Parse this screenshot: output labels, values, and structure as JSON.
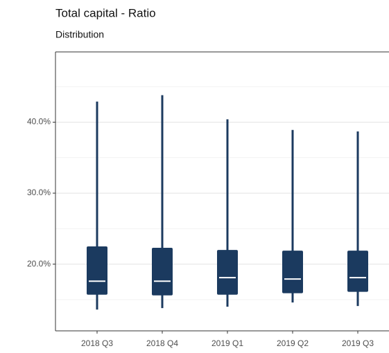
{
  "chart_data": {
    "type": "box",
    "title": "Total capital - Ratio",
    "subtitle": "Distribution",
    "categories": [
      "2018 Q3",
      "2018 Q4",
      "2019 Q1",
      "2019 Q2",
      "2019 Q3"
    ],
    "boxes": [
      {
        "low": 13.6,
        "q1": 15.7,
        "median": 17.6,
        "q3": 22.5,
        "high": 42.9
      },
      {
        "low": 13.8,
        "q1": 15.6,
        "median": 17.6,
        "q3": 22.3,
        "high": 43.8
      },
      {
        "low": 14.0,
        "q1": 15.7,
        "median": 18.1,
        "q3": 22.0,
        "high": 40.4
      },
      {
        "low": 14.6,
        "q1": 15.9,
        "median": 17.9,
        "q3": 21.9,
        "high": 38.9
      },
      {
        "low": 14.1,
        "q1": 16.1,
        "median": 18.1,
        "q3": 21.9,
        "high": 38.7
      }
    ],
    "color": "#1b3a5f",
    "median_color": "#ffffff",
    "ylim": [
      10.6,
      49.9
    ],
    "yticks": [
      {
        "value": 20,
        "label": "20.0%"
      },
      {
        "value": 30,
        "label": "30.0%"
      },
      {
        "value": 40,
        "label": "40.0%"
      }
    ],
    "yminor": [
      15,
      25,
      35,
      45
    ],
    "grid": true
  }
}
